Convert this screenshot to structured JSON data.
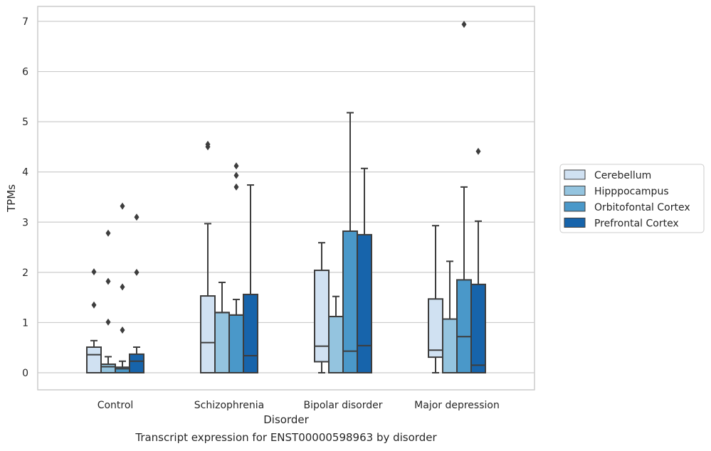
{
  "chart_data": {
    "type": "box",
    "xlabel": "Disorder",
    "ylabel": "TPMs",
    "caption": "Transcript expression for ENST00000598963 by disorder",
    "ylim": [
      -0.35,
      7.3
    ],
    "yticks": [
      0,
      1,
      2,
      3,
      4,
      5,
      6,
      7
    ],
    "grid": true,
    "legend_position": "right",
    "categories": [
      "Control",
      "Schizophrenia",
      "Bipolar disorder",
      "Major depression"
    ],
    "series": [
      {
        "name": "Cerebellum",
        "color": "#d0e1f2",
        "boxes": [
          {
            "whislo": 0,
            "q1": 0,
            "med": 0.36,
            "q3": 0.51,
            "whishi": 0.64,
            "fliers": [
              1.35,
              2.01
            ]
          },
          {
            "whislo": 0,
            "q1": 0,
            "med": 0.6,
            "q3": 1.53,
            "whishi": 2.97,
            "fliers": [
              4.5,
              4.55
            ]
          },
          {
            "whislo": 0,
            "q1": 0.22,
            "med": 0.53,
            "q3": 2.04,
            "whishi": 2.59,
            "fliers": []
          },
          {
            "whislo": 0,
            "q1": 0.31,
            "med": 0.45,
            "q3": 1.47,
            "whishi": 2.93,
            "fliers": []
          }
        ]
      },
      {
        "name": "Hipppocampus",
        "color": "#94c4df",
        "boxes": [
          {
            "whislo": 0,
            "q1": 0,
            "med": 0.12,
            "q3": 0.17,
            "whishi": 0.32,
            "fliers": [
              1.01,
              1.82,
              2.78
            ]
          },
          {
            "whislo": 0,
            "q1": 0,
            "med": 1.2,
            "q3": 1.2,
            "whishi": 1.8,
            "fliers": []
          },
          {
            "whislo": 0,
            "q1": 0,
            "med": 1.12,
            "q3": 1.12,
            "whishi": 1.52,
            "fliers": []
          },
          {
            "whislo": 0,
            "q1": 0,
            "med": 1.07,
            "q3": 1.07,
            "whishi": 2.22,
            "fliers": []
          }
        ]
      },
      {
        "name": "Orbitofontal Cortex",
        "color": "#4a98c9",
        "boxes": [
          {
            "whislo": 0,
            "q1": 0,
            "med": 0.08,
            "q3": 0.11,
            "whishi": 0.23,
            "fliers": [
              0.85,
              1.71,
              3.32
            ]
          },
          {
            "whislo": 0,
            "q1": 0,
            "med": 1.15,
            "q3": 1.15,
            "whishi": 1.46,
            "fliers": [
              3.7,
              3.93,
              4.12
            ]
          },
          {
            "whislo": 0,
            "q1": 0,
            "med": 0.43,
            "q3": 2.82,
            "whishi": 5.18,
            "fliers": []
          },
          {
            "whislo": 0,
            "q1": 0,
            "med": 0.72,
            "q3": 1.85,
            "whishi": 3.7,
            "fliers": [
              6.94
            ]
          }
        ]
      },
      {
        "name": "Prefrontal Cortex",
        "color": "#1764ab",
        "boxes": [
          {
            "whislo": 0,
            "q1": 0,
            "med": 0.23,
            "q3": 0.37,
            "whishi": 0.51,
            "fliers": [
              2.0,
              3.1
            ]
          },
          {
            "whislo": 0,
            "q1": 0,
            "med": 0.34,
            "q3": 1.56,
            "whishi": 3.74,
            "fliers": []
          },
          {
            "whislo": 0,
            "q1": 0,
            "med": 0.54,
            "q3": 2.75,
            "whishi": 4.07,
            "fliers": []
          },
          {
            "whislo": 0,
            "q1": 0,
            "med": 0.15,
            "q3": 1.76,
            "whishi": 3.02,
            "fliers": [
              4.41
            ]
          }
        ]
      }
    ]
  },
  "colors": {
    "grid": "#cccccc",
    "spine": "#cccccc",
    "line": "#3d3d3d"
  }
}
